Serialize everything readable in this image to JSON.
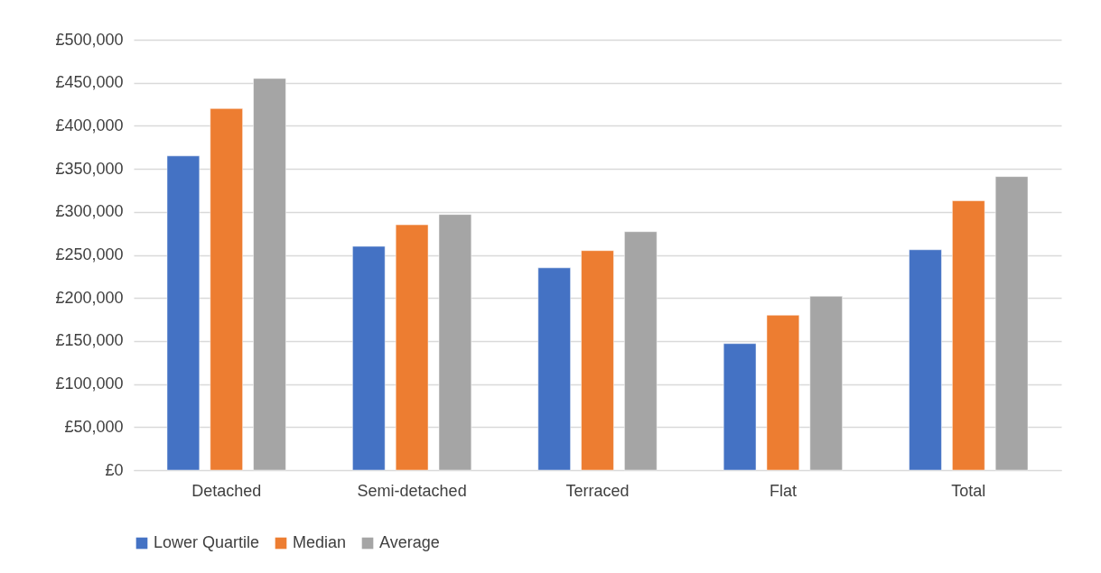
{
  "chart_data": {
    "type": "bar",
    "categories": [
      "Detached",
      "Semi-detached",
      "Terraced",
      "Flat",
      "Total"
    ],
    "series": [
      {
        "name": "Lower Quartile",
        "color": "#4472c4",
        "values": [
          365000,
          260000,
          235000,
          147000,
          256000
        ]
      },
      {
        "name": "Median",
        "color": "#ed7d31",
        "values": [
          420000,
          285000,
          255000,
          180000,
          313000
        ]
      },
      {
        "name": "Average",
        "color": "#a5a5a5",
        "values": [
          455000,
          297000,
          277000,
          202000,
          341000
        ]
      }
    ],
    "ylim": [
      0,
      500000
    ],
    "yticks": [
      {
        "value": 0,
        "label": "£0"
      },
      {
        "value": 50000,
        "label": "£50,000"
      },
      {
        "value": 100000,
        "label": "£100,000"
      },
      {
        "value": 150000,
        "label": "£150,000"
      },
      {
        "value": 200000,
        "label": "£200,000"
      },
      {
        "value": 250000,
        "label": "£250,000"
      },
      {
        "value": 300000,
        "label": "£300,000"
      },
      {
        "value": 350000,
        "label": "£350,000"
      },
      {
        "value": 400000,
        "label": "£400,000"
      },
      {
        "value": 450000,
        "label": "£450,000"
      },
      {
        "value": 500000,
        "label": "£500,000"
      }
    ],
    "grid": "y",
    "legend": "bottom"
  }
}
